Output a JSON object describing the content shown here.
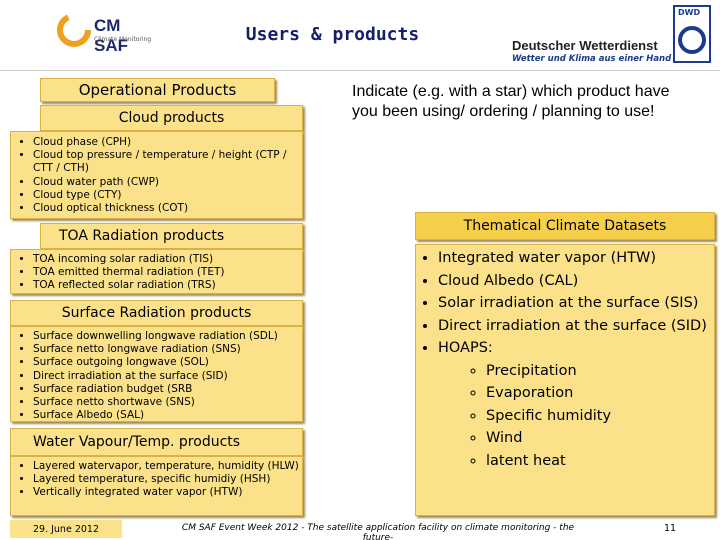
{
  "header": {
    "title": "Users & products",
    "logo_left": {
      "name": "CM SAF",
      "subtitle": "Climate Monitoring"
    },
    "logo_right": {
      "name": "DWD",
      "org": "Deutscher Wetterdienst",
      "slogan": "Wetter und Klima aus einer Hand"
    }
  },
  "left": {
    "title": "Operational Products",
    "sections": [
      {
        "heading": "Cloud products",
        "items": [
          "Cloud phase (CPH)",
          "Cloud top pressure / temperature / height (CTP / CTT / CTH)",
          "Cloud water path (CWP)",
          "Cloud type (CTY)",
          "Cloud optical thickness (COT)"
        ]
      },
      {
        "heading": "TOA Radiation products",
        "items": [
          "TOA incoming solar radiation (TIS)",
          "TOA emitted thermal radiation (TET)",
          "TOA reflected solar radiation (TRS)"
        ]
      },
      {
        "heading": "Surface Radiation products",
        "items": [
          "Surface downwelling longwave radiation (SDL)",
          "Surface netto longwave radiation (SNS)",
          "Surface outgoing longwave (SOL)",
          "Direct irradiation at the surface (SID)",
          "Surface radiation budget (SRB",
          "Surface netto shortwave (SNS)",
          "Surface Albedo (SAL)"
        ]
      },
      {
        "heading": "Water Vapour/Temp. products",
        "items": [
          "Layered watervapor, temperature, humidity (HLW)",
          "Layered temperature, specific humidiy (HSH)",
          "Vertically integrated water vapor (HTW)"
        ]
      }
    ]
  },
  "right": {
    "instruction": "Indicate (e.g. with a star) which product have you been using/ ordering / planning to use!",
    "thematic": {
      "heading": "Thematical Climate Datasets",
      "items": [
        "Integrated water vapor (HTW)",
        "Cloud Albedo (CAL)",
        "Solar irradiation at the surface (SIS)",
        "Direct irradiation at the surface (SID)",
        "HOAPS:"
      ],
      "sub_items": [
        "Precipitation",
        "Evaporation",
        "Specific humidity",
        "Wind",
        "latent heat"
      ]
    }
  },
  "footer": {
    "date": "29. June 2012",
    "text": "CM SAF Event Week 2012 - The satellite application facility on climate monitoring - the future-",
    "page": "11"
  }
}
